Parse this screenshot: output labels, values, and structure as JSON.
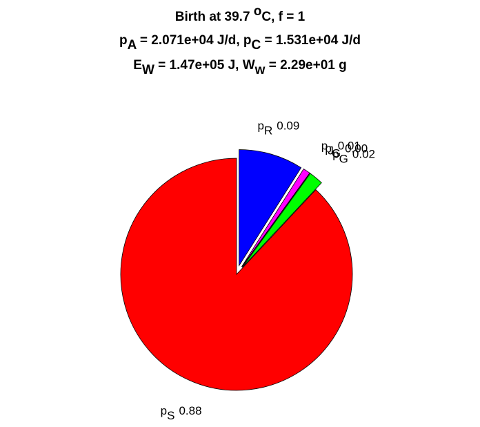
{
  "chart_data": {
    "type": "pie",
    "title": [
      [
        "Birth at 39.7 ",
        {
          "sup": "o"
        },
        "C, f = 1"
      ],
      [
        "p",
        {
          "sub": "A"
        },
        " = 2.071e+04 J/d, p",
        {
          "sub": "C"
        },
        " = 1.531e+04 J/d"
      ],
      [
        "E",
        {
          "sub": "W"
        },
        " = 1.47e+05 J, W",
        {
          "sub": "w"
        },
        " = 2.29e+01 g"
      ]
    ],
    "labels": [
      {
        "text": "p",
        "sub": "R"
      },
      {
        "text": "p",
        "sub": "J"
      },
      {
        "text": "p",
        "sub": "G"
      },
      {
        "text": "p",
        "sub": "G"
      },
      {
        "text": "p",
        "sub": "S"
      }
    ],
    "values": [
      0.09,
      0.01,
      0.0,
      0.02,
      0.88
    ],
    "value_labels": [
      "0.09",
      "0.01",
      "0.00",
      "0.02",
      "0.88"
    ],
    "colors": [
      "#0000ff",
      "#ff00ff",
      "#00ffff",
      "#00ff00",
      "#ff0000"
    ],
    "explode": [
      1,
      1,
      1,
      1,
      0
    ]
  }
}
